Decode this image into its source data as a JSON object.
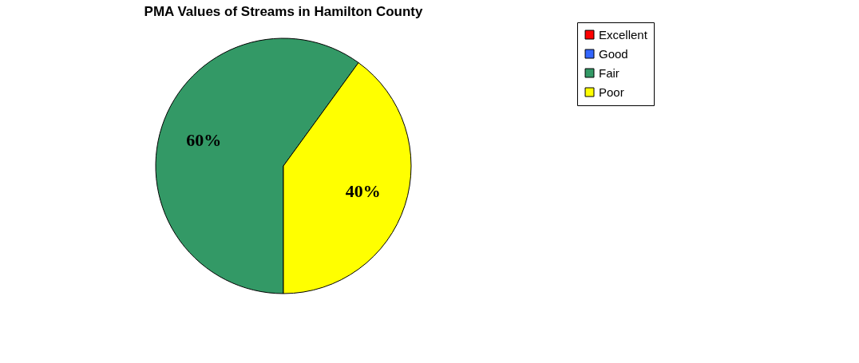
{
  "chart_data": {
    "type": "pie",
    "title": "PMA Values of Streams in Hamilton County",
    "categories": [
      "Excellent",
      "Good",
      "Fair",
      "Poor"
    ],
    "values": [
      0,
      0,
      60,
      40
    ],
    "colors": [
      "#ff0000",
      "#3366ff",
      "#339966",
      "#ffff00"
    ],
    "value_labels": [
      null,
      null,
      "60%",
      "40%"
    ],
    "legend": "right"
  }
}
